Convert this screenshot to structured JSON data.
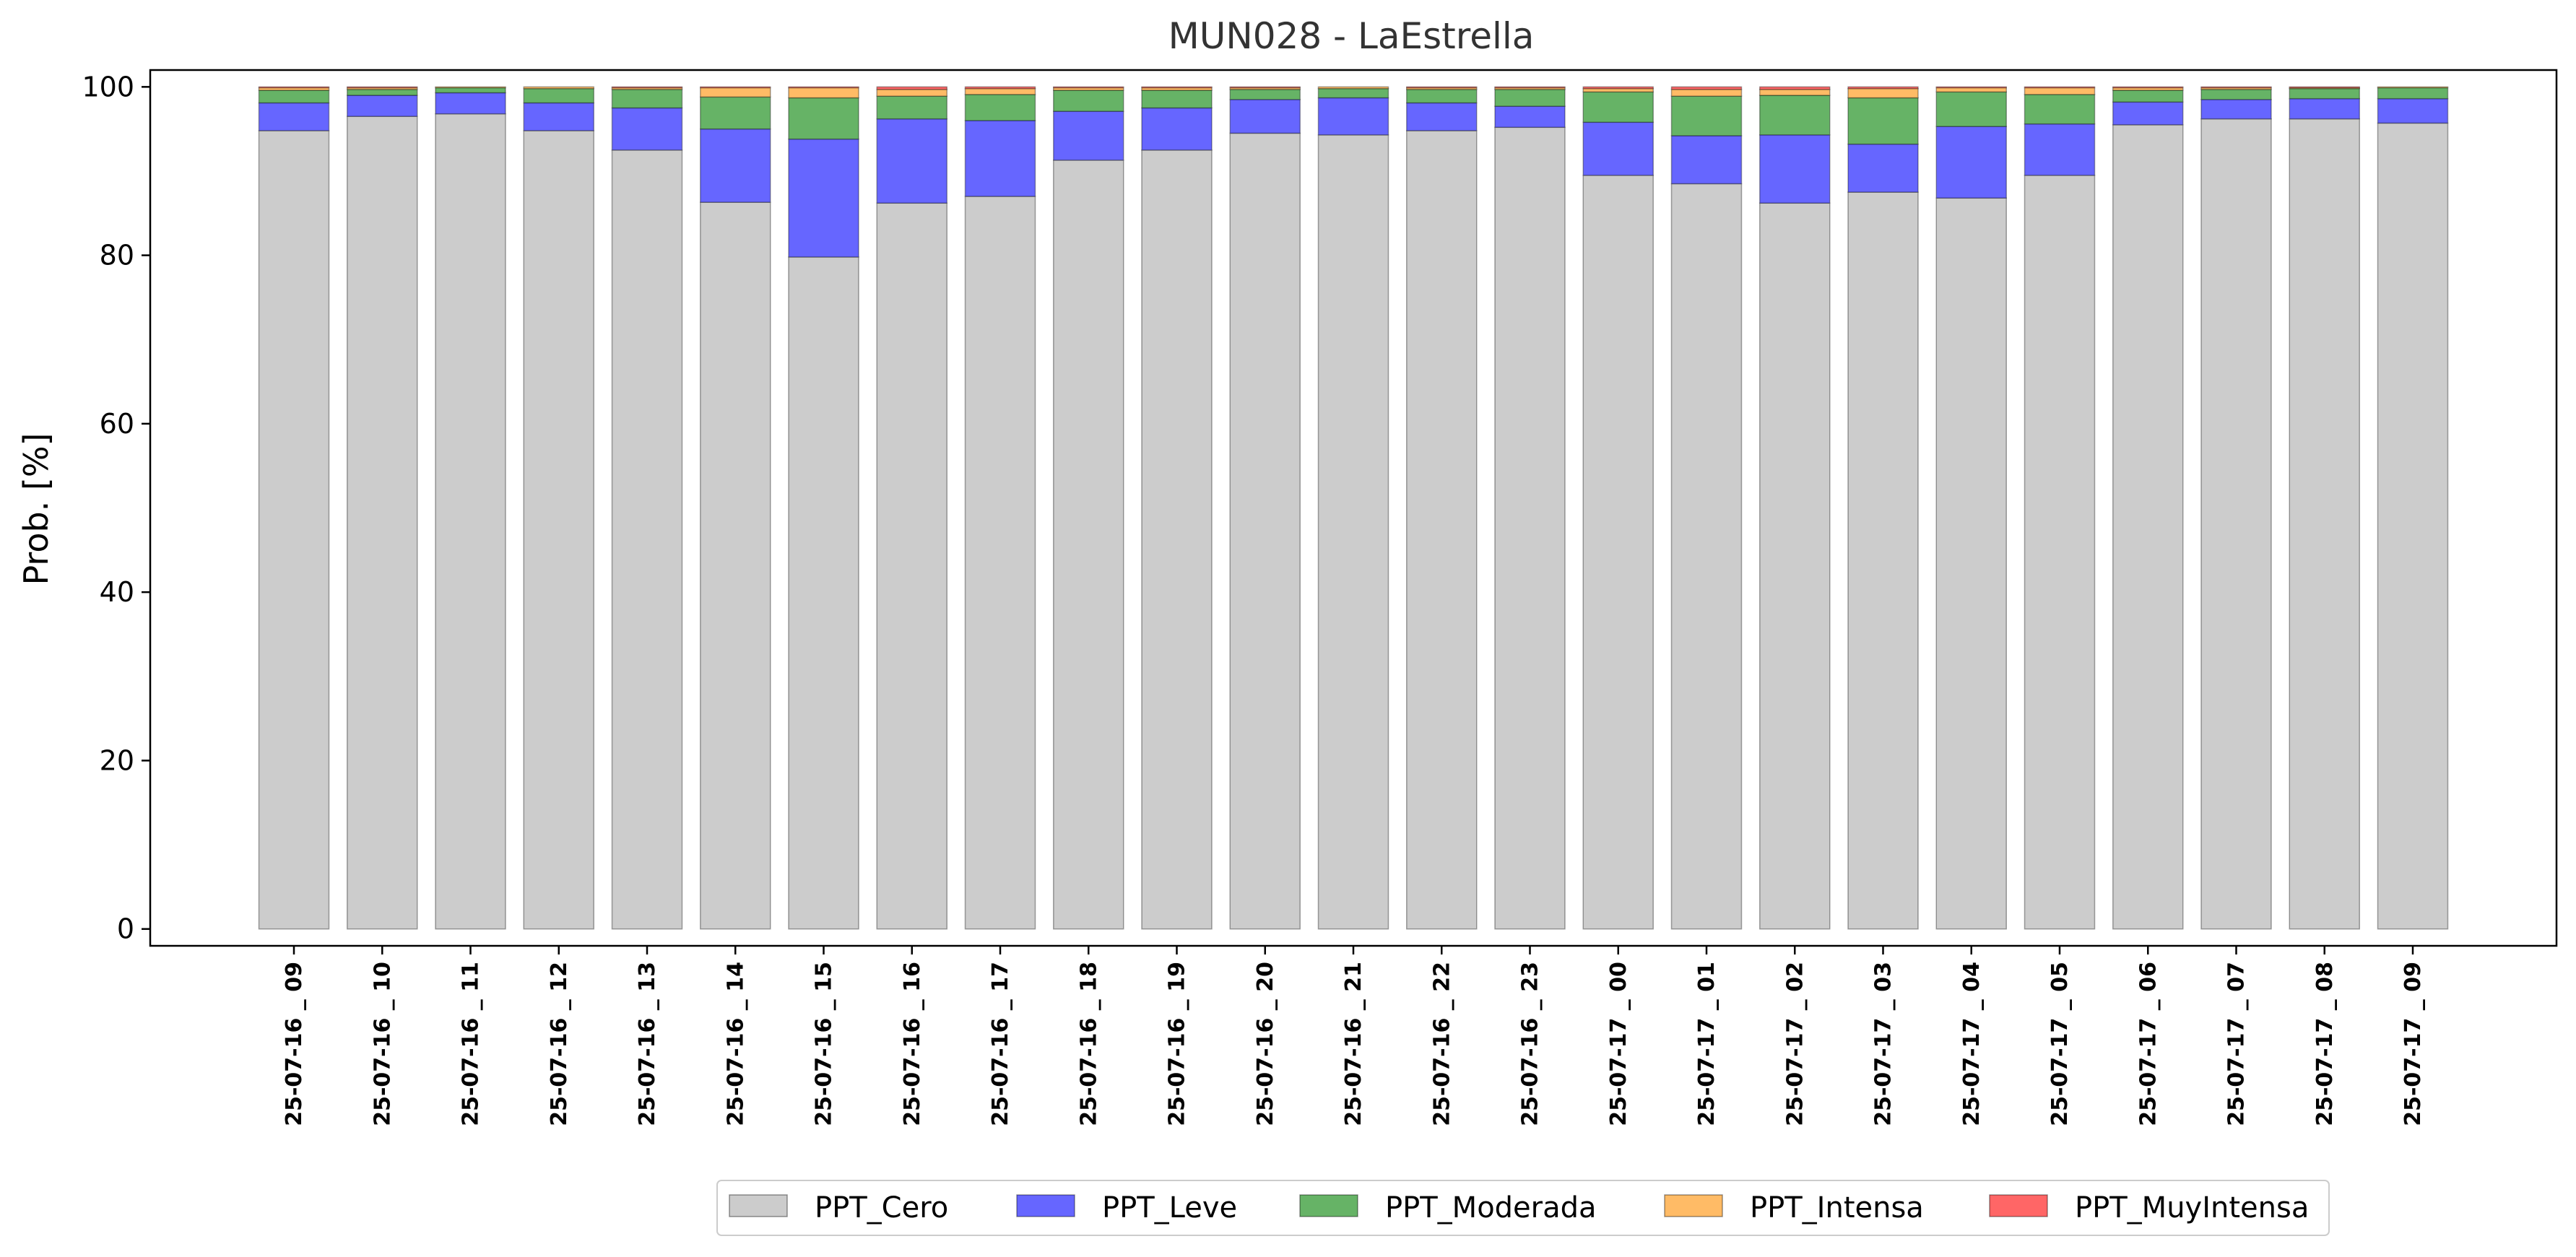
{
  "chart_data": {
    "type": "bar",
    "stacked": true,
    "title": "MUN028 - LaEstrella",
    "xlabel": "",
    "ylabel": "Prob. [%]",
    "ylim": [
      -2,
      102
    ],
    "yticks": [
      0,
      20,
      40,
      60,
      80,
      100
    ],
    "grid": false,
    "legend_position": "bottom-center",
    "categories": [
      "25-07-16 _ 09",
      "25-07-16 _ 10",
      "25-07-16 _ 11",
      "25-07-16 _ 12",
      "25-07-16 _ 13",
      "25-07-16 _ 14",
      "25-07-16 _ 15",
      "25-07-16 _ 16",
      "25-07-16 _ 17",
      "25-07-16 _ 18",
      "25-07-16 _ 19",
      "25-07-16 _ 20",
      "25-07-16 _ 21",
      "25-07-16 _ 22",
      "25-07-16 _ 23",
      "25-07-17 _ 00",
      "25-07-17 _ 01",
      "25-07-17 _ 02",
      "25-07-17 _ 03",
      "25-07-17 _ 04",
      "25-07-17 _ 05",
      "25-07-17 _ 06",
      "25-07-17 _ 07",
      "25-07-17 _ 08",
      "25-07-17 _ 09"
    ],
    "series": [
      {
        "name": "PPT_Cero",
        "color": "#cccccc",
        "values": [
          94.8,
          96.5,
          96.8,
          94.8,
          92.5,
          86.3,
          79.8,
          86.2,
          87.0,
          91.3,
          92.5,
          94.5,
          94.3,
          94.8,
          95.2,
          89.5,
          88.5,
          86.2,
          87.5,
          86.8,
          89.5,
          95.5,
          96.2,
          96.2,
          95.7
        ]
      },
      {
        "name": "PPT_Leve",
        "color": "#6666ff",
        "values": [
          3.3,
          2.5,
          2.5,
          3.3,
          5.0,
          8.7,
          14.0,
          10.0,
          9.0,
          5.8,
          5.0,
          4.0,
          4.4,
          3.3,
          2.5,
          6.3,
          5.7,
          8.1,
          5.7,
          8.5,
          6.1,
          2.7,
          2.3,
          2.4,
          2.9
        ]
      },
      {
        "name": "PPT_Moderada",
        "color": "#66b366",
        "values": [
          1.5,
          0.7,
          0.6,
          1.7,
          2.2,
          3.8,
          4.9,
          2.7,
          3.1,
          2.5,
          2.1,
          1.2,
          1.1,
          1.6,
          2.0,
          3.6,
          4.7,
          4.7,
          5.5,
          4.1,
          3.5,
          1.4,
          1.2,
          1.2,
          1.3
        ]
      },
      {
        "name": "PPT_Intensa",
        "color": "#ffbb66",
        "values": [
          0.3,
          0.2,
          0.1,
          0.2,
          0.2,
          1.1,
          1.2,
          0.8,
          0.7,
          0.3,
          0.3,
          0.2,
          0.2,
          0.2,
          0.2,
          0.4,
          0.8,
          0.7,
          1.1,
          0.5,
          0.8,
          0.3,
          0.2,
          0.1,
          0.1
        ]
      },
      {
        "name": "PPT_MuyIntensa",
        "color": "#ff6666",
        "values": [
          0.1,
          0.1,
          0.0,
          0.0,
          0.1,
          0.1,
          0.1,
          0.3,
          0.2,
          0.1,
          0.1,
          0.1,
          0.0,
          0.1,
          0.1,
          0.2,
          0.3,
          0.3,
          0.2,
          0.1,
          0.1,
          0.1,
          0.1,
          0.1,
          0.0
        ]
      }
    ]
  }
}
